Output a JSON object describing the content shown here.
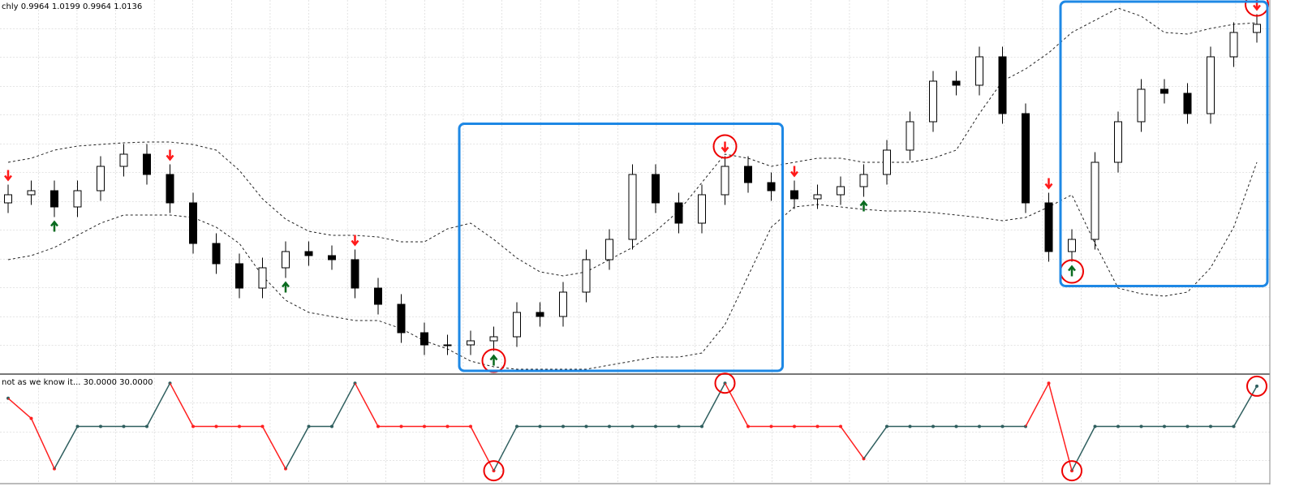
{
  "chart_data": [
    {
      "type": "candlestick",
      "title": "chly  0.9964 1.0199 0.9964 1.0136",
      "ylim": [
        0.666,
        1.03
      ],
      "open": [
        0.83,
        0.838,
        0.842,
        0.826,
        0.842,
        0.866,
        0.878,
        0.858,
        0.83,
        0.79,
        0.77,
        0.746,
        0.766,
        0.782,
        0.778,
        0.774,
        0.746,
        0.73,
        0.702,
        0.69,
        0.69,
        0.694,
        0.698,
        0.722,
        0.718,
        0.742,
        0.774,
        0.794,
        0.858,
        0.83,
        0.81,
        0.838,
        0.866,
        0.85,
        0.842,
        0.834,
        0.838,
        0.846,
        0.858,
        0.882,
        0.91,
        0.95,
        0.946,
        0.974,
        0.918,
        0.83,
        0.782,
        0.794,
        0.87,
        0.91,
        0.942,
        0.938,
        0.918,
        0.974,
        0.998
      ],
      "high": [
        0.848,
        0.852,
        0.852,
        0.852,
        0.876,
        0.888,
        0.888,
        0.868,
        0.84,
        0.8,
        0.78,
        0.776,
        0.792,
        0.792,
        0.788,
        0.784,
        0.756,
        0.74,
        0.712,
        0.7,
        0.704,
        0.708,
        0.732,
        0.732,
        0.752,
        0.784,
        0.804,
        0.868,
        0.868,
        0.84,
        0.848,
        0.876,
        0.876,
        0.86,
        0.852,
        0.848,
        0.856,
        0.868,
        0.892,
        0.92,
        0.96,
        0.96,
        0.984,
        0.984,
        0.928,
        0.84,
        0.804,
        0.88,
        0.92,
        0.952,
        0.952,
        0.948,
        0.984,
        1.008,
        1.016
      ],
      "low": [
        0.82,
        0.828,
        0.816,
        0.816,
        0.832,
        0.856,
        0.848,
        0.82,
        0.78,
        0.76,
        0.736,
        0.736,
        0.756,
        0.768,
        0.764,
        0.736,
        0.72,
        0.692,
        0.68,
        0.68,
        0.68,
        0.684,
        0.688,
        0.708,
        0.708,
        0.732,
        0.764,
        0.784,
        0.82,
        0.8,
        0.8,
        0.828,
        0.84,
        0.832,
        0.824,
        0.824,
        0.828,
        0.836,
        0.848,
        0.872,
        0.9,
        0.936,
        0.936,
        0.908,
        0.82,
        0.772,
        0.772,
        0.784,
        0.86,
        0.9,
        0.928,
        0.908,
        0.908,
        0.964,
        0.988
      ],
      "close": [
        0.838,
        0.842,
        0.826,
        0.842,
        0.866,
        0.878,
        0.858,
        0.83,
        0.79,
        0.77,
        0.746,
        0.766,
        0.782,
        0.778,
        0.774,
        0.746,
        0.73,
        0.702,
        0.69,
        0.69,
        0.694,
        0.698,
        0.722,
        0.718,
        0.742,
        0.774,
        0.794,
        0.858,
        0.83,
        0.81,
        0.838,
        0.866,
        0.85,
        0.842,
        0.834,
        0.838,
        0.846,
        0.858,
        0.882,
        0.91,
        0.95,
        0.946,
        0.974,
        0.918,
        0.83,
        0.782,
        0.794,
        0.87,
        0.91,
        0.942,
        0.938,
        0.918,
        0.974,
        0.998,
        1.006
      ],
      "bands": [
        {
          "values": [
            0.87,
            0.874,
            0.882,
            0.886,
            0.8876,
            0.8892,
            0.89,
            0.89,
            0.8876,
            0.882,
            0.862,
            0.834,
            0.814,
            0.802,
            0.798,
            0.798,
            0.7964,
            0.7916,
            0.7916,
            0.8044,
            0.81,
            0.794,
            0.7756,
            0.762,
            0.758,
            0.762,
            0.774,
            0.786,
            0.802,
            0.822,
            0.85,
            0.878,
            0.874,
            0.866,
            0.87,
            0.874,
            0.874,
            0.87,
            0.87,
            0.87,
            0.874,
            0.882,
            0.918,
            0.95,
            0.962,
            0.978,
            0.998,
            1.01,
            1.022,
            1.014,
            0.998,
            0.9964,
            1.002,
            1.006,
            1.0076
          ]
        },
        {
          "values": [
            0.774,
            0.778,
            0.786,
            0.798,
            0.81,
            0.818,
            0.818,
            0.818,
            0.8156,
            0.806,
            0.79,
            0.758,
            0.734,
            0.722,
            0.718,
            0.714,
            0.714,
            0.706,
            0.694,
            0.686,
            0.674,
            0.6684,
            0.666,
            0.666,
            0.666,
            0.666,
            0.67,
            0.674,
            0.678,
            0.678,
            0.682,
            0.71,
            0.758,
            0.806,
            0.826,
            0.8284,
            0.826,
            0.8236,
            0.822,
            0.822,
            0.8204,
            0.818,
            0.8156,
            0.8124,
            0.8156,
            0.826,
            0.838,
            0.79,
            0.746,
            0.7404,
            0.738,
            0.742,
            0.766,
            0.806,
            0.87
          ]
        }
      ],
      "sell_signals": [
        0,
        7,
        15,
        31,
        34,
        45,
        54
      ],
      "buy_signals": [
        2,
        12,
        21,
        37,
        46
      ],
      "highlighted": [
        21,
        31,
        46,
        54
      ],
      "highlight_ranges": [
        [
          20,
          33
        ],
        [
          46,
          54
        ]
      ],
      "up_color": "#ffffff",
      "down_color": "#000000",
      "sell_color": "#ff1a1a",
      "buy_color": "#0a6b1f",
      "box_color": "#1e88e5"
    },
    {
      "type": "line",
      "title": "not as we know it...  30.0000 30.0000",
      "ylim": [
        0,
        100
      ],
      "values": [
        80,
        60,
        10,
        52,
        52,
        52,
        52,
        95,
        52,
        52,
        52,
        52,
        10,
        52,
        52,
        95,
        52,
        52,
        52,
        52,
        52,
        8,
        52,
        52,
        52,
        52,
        52,
        52,
        52,
        52,
        52,
        95,
        52,
        52,
        52,
        52,
        52,
        20,
        52,
        52,
        52,
        52,
        52,
        52,
        52,
        95,
        8,
        52,
        52,
        52,
        52,
        52,
        52,
        52,
        92
      ],
      "point_colors": [
        "#2f5f5f",
        "#ff2020",
        "#ff2020",
        "#2f5f5f",
        "#2f5f5f",
        "#2f5f5f",
        "#2f5f5f",
        "#2f5f5f",
        "#ff2020",
        "#ff2020",
        "#ff2020",
        "#ff2020",
        "#ff2020",
        "#2f5f5f",
        "#2f5f5f",
        "#2f5f5f",
        "#ff2020",
        "#ff2020",
        "#ff2020",
        "#ff2020",
        "#ff2020",
        "#ff2020",
        "#2f5f5f",
        "#2f5f5f",
        "#2f5f5f",
        "#2f5f5f",
        "#2f5f5f",
        "#2f5f5f",
        "#2f5f5f",
        "#2f5f5f",
        "#2f5f5f",
        "#2f5f5f",
        "#ff2020",
        "#ff2020",
        "#ff2020",
        "#ff2020",
        "#ff2020",
        "#ff2020",
        "#2f5f5f",
        "#2f5f5f",
        "#2f5f5f",
        "#2f5f5f",
        "#2f5f5f",
        "#2f5f5f",
        "#2f5f5f",
        "#ff2020",
        "#ff2020",
        "#2f5f5f",
        "#2f5f5f",
        "#2f5f5f",
        "#2f5f5f",
        "#2f5f5f",
        "#2f5f5f",
        "#2f5f5f",
        "#2f5f5f"
      ]
    }
  ]
}
